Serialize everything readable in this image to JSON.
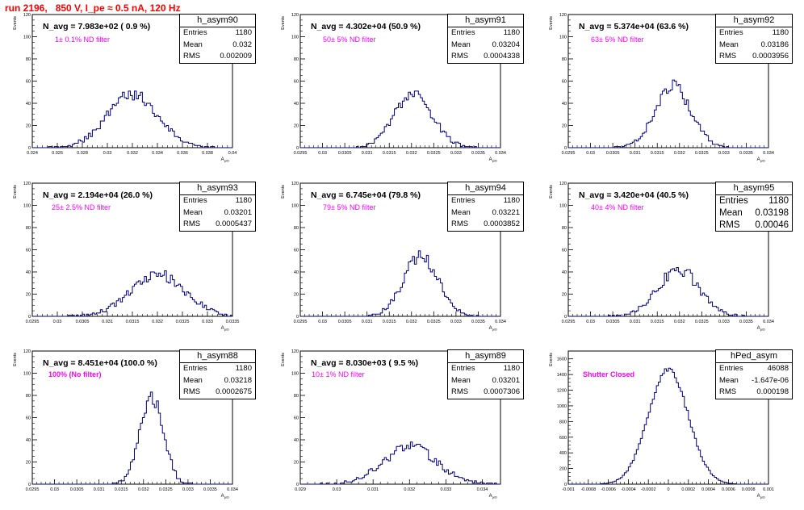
{
  "title": "run 2196,   850 V, I_pe ≈ 0.5 nA, 120 Hz",
  "y_axis_label": "Events",
  "x_axis_label": "A",
  "x_axis_label_sub": "µ/D",
  "colors": {
    "histogram": "#000080",
    "title": "#ff0000",
    "filter_text": "#ff00ff"
  },
  "chart_data": [
    {
      "type": "bar",
      "name": "h_asym90",
      "navg": "N_avg = 7.983e+02 ( 0.9 %)",
      "filter": "1± 0.1% ND filter",
      "stats": [
        [
          "Entries",
          "1180"
        ],
        [
          "Mean",
          "0.032"
        ],
        [
          "RMS",
          "0.002009"
        ]
      ],
      "xlim": [
        0.024,
        0.04
      ],
      "ylim": [
        0,
        120
      ],
      "xticks": [
        0.024,
        0.026,
        0.028,
        0.03,
        0.032,
        0.034,
        0.036,
        0.038,
        0.04
      ],
      "xtick_labels": [
        "0.024",
        "0.026",
        "0.028",
        "0.03",
        "0.032",
        "0.034",
        "0.036",
        "0.038",
        "0.04"
      ],
      "yticks": [
        0,
        20,
        40,
        60,
        80,
        100,
        120
      ],
      "mean": 0.032,
      "rms": 0.002009,
      "peak": 54,
      "seed": 3
    },
    {
      "type": "bar",
      "name": "h_asym91",
      "navg": "N_avg = 4.302e+04 (50.9 %)",
      "filter": "50± 5% ND filter",
      "stats": [
        [
          "Entries",
          "1180"
        ],
        [
          "Mean",
          "0.03204"
        ],
        [
          "RMS",
          "0.0004338"
        ]
      ],
      "xlim": [
        0.0295,
        0.034
      ],
      "ylim": [
        0,
        120
      ],
      "xticks": [
        0.0295,
        0.03,
        0.0305,
        0.031,
        0.0315,
        0.032,
        0.0325,
        0.033,
        0.0335,
        0.034
      ],
      "xtick_labels": [
        "0.0295",
        "0.03",
        "0.0305",
        "0.031",
        "0.0315",
        "0.032",
        "0.0325",
        "0.033",
        "0.0335",
        "0.034"
      ],
      "yticks": [
        0,
        20,
        40,
        60,
        80,
        100,
        120
      ],
      "mean": 0.03204,
      "rms": 0.0004338,
      "peak": 54,
      "seed": 7
    },
    {
      "type": "bar",
      "name": "h_asym92",
      "navg": "N_avg = 5.374e+04 (63.6 %)",
      "filter": "63± 5% ND filter",
      "stats": [
        [
          "Entries",
          "1180"
        ],
        [
          "Mean",
          "0.03186"
        ],
        [
          "RMS",
          "0.0003956"
        ]
      ],
      "xlim": [
        0.0295,
        0.034
      ],
      "ylim": [
        0,
        120
      ],
      "xticks": [
        0.0295,
        0.03,
        0.0305,
        0.031,
        0.0315,
        0.032,
        0.0325,
        0.033,
        0.0335,
        0.034
      ],
      "xtick_labels": [
        "0.0295",
        "0.03",
        "0.0305",
        "0.031",
        "0.0315",
        "0.032",
        "0.0325",
        "0.033",
        "0.0335",
        "0.034"
      ],
      "yticks": [
        0,
        20,
        40,
        60,
        80,
        100,
        120
      ],
      "mean": 0.03186,
      "rms": 0.0003956,
      "peak": 64,
      "seed": 11
    },
    {
      "type": "bar",
      "name": "h_asym93",
      "navg": "N_avg = 2.194e+04 (26.0 %)",
      "filter": "25± 2.5% ND filter",
      "stats": [
        [
          "Entries",
          "1180"
        ],
        [
          "Mean",
          "0.03201"
        ],
        [
          "RMS",
          "0.0005437"
        ]
      ],
      "xlim": [
        0.0295,
        0.0335
      ],
      "ylim": [
        0,
        120
      ],
      "xticks": [
        0.0295,
        0.03,
        0.0305,
        0.031,
        0.0315,
        0.032,
        0.0325,
        0.033,
        0.0335
      ],
      "xtick_labels": [
        "0.0295",
        "0.03",
        "0.0305",
        "0.031",
        "0.0315",
        "0.032",
        "0.0325",
        "0.033",
        "0.0335"
      ],
      "yticks": [
        0,
        20,
        40,
        60,
        80,
        100,
        120
      ],
      "mean": 0.03201,
      "rms": 0.0005437,
      "peak": 43,
      "seed": 17
    },
    {
      "type": "bar",
      "name": "h_asym94",
      "navg": "N_avg = 6.745e+04 (79.8 %)",
      "filter": "79± 5% ND filter",
      "stats": [
        [
          "Entries",
          "1180"
        ],
        [
          "Mean",
          "0.03221"
        ],
        [
          "RMS",
          "0.0003852"
        ]
      ],
      "xlim": [
        0.0295,
        0.034
      ],
      "ylim": [
        0,
        120
      ],
      "xticks": [
        0.0295,
        0.03,
        0.0305,
        0.031,
        0.0315,
        0.032,
        0.0325,
        0.033,
        0.0335,
        0.034
      ],
      "xtick_labels": [
        "0.0295",
        "0.03",
        "0.0305",
        "0.031",
        "0.0315",
        "0.032",
        "0.0325",
        "0.033",
        "0.0335",
        "0.034"
      ],
      "yticks": [
        0,
        20,
        40,
        60,
        80,
        100,
        120
      ],
      "mean": 0.03221,
      "rms": 0.0003852,
      "peak": 62,
      "seed": 23
    },
    {
      "type": "bar",
      "name": "h_asym95",
      "navg": "N_avg = 3.420e+04 (40.5 %)",
      "filter": "40± 4% ND filter",
      "stats": [
        [
          "Entries",
          "1180"
        ],
        [
          "Mean",
          "0.03198"
        ],
        [
          "RMS",
          "0.00046"
        ]
      ],
      "xlim": [
        0.0295,
        0.034
      ],
      "ylim": [
        0,
        120
      ],
      "xticks": [
        0.0295,
        0.03,
        0.0305,
        0.031,
        0.0315,
        0.032,
        0.0325,
        0.033,
        0.0335,
        0.034
      ],
      "xtick_labels": [
        "0.0295",
        "0.03",
        "0.0305",
        "0.031",
        "0.0315",
        "0.032",
        "0.0325",
        "0.033",
        "0.0335",
        "0.034"
      ],
      "yticks": [
        0,
        20,
        40,
        60,
        80,
        100,
        120
      ],
      "mean": 0.03198,
      "rms": 0.00046,
      "peak": 48,
      "seed": 29
    },
    {
      "type": "bar",
      "name": "h_asym88",
      "navg": "N_avg = 8.451e+04 (100.0 %)",
      "filter": "100% (No filter)",
      "stats": [
        [
          "Entries",
          "1180"
        ],
        [
          "Mean",
          "0.03218"
        ],
        [
          "RMS",
          "0.0002675"
        ]
      ],
      "xlim": [
        0.0295,
        0.034
      ],
      "ylim": [
        0,
        120
      ],
      "xticks": [
        0.0295,
        0.03,
        0.0305,
        0.031,
        0.0315,
        0.032,
        0.0325,
        0.033,
        0.0335,
        0.034
      ],
      "xtick_labels": [
        "0.0295",
        "0.03",
        "0.0305",
        "0.031",
        "0.0315",
        "0.032",
        "0.0325",
        "0.033",
        "0.0335",
        "0.034"
      ],
      "yticks": [
        0,
        20,
        40,
        60,
        80,
        100,
        120
      ],
      "mean": 0.03218,
      "rms": 0.0002675,
      "peak": 88,
      "seed": 31
    },
    {
      "type": "bar",
      "name": "h_asym89",
      "navg": "N_avg = 8.030e+03 ( 9.5 %)",
      "filter": "10± 1% ND filter",
      "stats": [
        [
          "Entries",
          "1180"
        ],
        [
          "Mean",
          "0.03201"
        ],
        [
          "RMS",
          "0.0007306"
        ]
      ],
      "xlim": [
        0.029,
        0.0345
      ],
      "ylim": [
        0,
        120
      ],
      "xticks": [
        0.029,
        0.03,
        0.031,
        0.032,
        0.033,
        0.034
      ],
      "xtick_labels": [
        "0.029",
        "0.03",
        "0.031",
        "0.032",
        "0.033",
        "0.034"
      ],
      "yticks": [
        0,
        20,
        40,
        60,
        80,
        100,
        120
      ],
      "mean": 0.03201,
      "rms": 0.0007306,
      "peak": 39,
      "seed": 37
    },
    {
      "type": "bar",
      "name": "hPed_asym",
      "navg": "",
      "filter": "Shutter Closed",
      "stats": [
        [
          "Entries",
          "46088"
        ],
        [
          "Mean",
          "-1.647e-06"
        ],
        [
          "RMS",
          "0.000198"
        ]
      ],
      "xlim": [
        -0.001,
        0.001
      ],
      "ylim": [
        0,
        1700
      ],
      "xticks": [
        -0.001,
        -0.0008,
        -0.0006,
        -0.0004,
        -0.0002,
        0,
        0.0002,
        0.0004,
        0.0006,
        0.0008,
        0.001
      ],
      "xtick_labels": [
        "-0.001",
        "-0.0008",
        "-0.0006",
        "-0.0004",
        "-0.0002",
        "0",
        "0.0002",
        "0.0004",
        "0.0006",
        "0.0008",
        "0.001"
      ],
      "yticks": [
        0,
        200,
        400,
        600,
        800,
        1000,
        1200,
        1400,
        1600
      ],
      "mean": -1.647e-06,
      "rms": 0.000198,
      "peak": 1670,
      "seed": 41
    }
  ]
}
